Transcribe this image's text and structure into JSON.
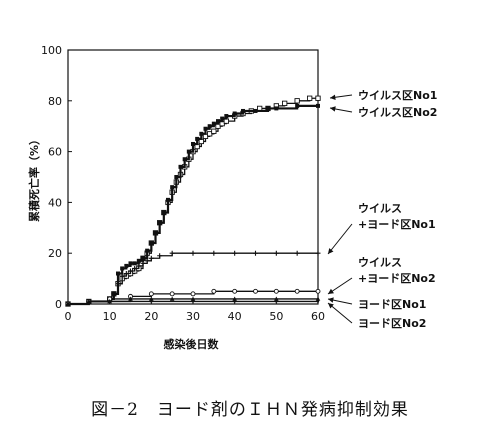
{
  "caption": "図－2　ヨード剤のＩＨＮ発病抑制効果",
  "chart_data": {
    "type": "line",
    "xlabel": "感染後日数",
    "ylabel": "累積死亡率（%）",
    "xlim": [
      0,
      60
    ],
    "ylim": [
      0,
      100
    ],
    "x_ticks": [
      "0",
      "10",
      "20",
      "30",
      "40",
      "50",
      "60"
    ],
    "y_ticks": [
      "0",
      "20",
      "40",
      "60",
      "80",
      "100"
    ],
    "grid": false,
    "legend": "right, labels with arrows",
    "series": [
      {
        "name": "ウイルス区No1",
        "marker": "square",
        "points": [
          [
            0,
            0
          ],
          [
            5,
            1
          ],
          [
            10,
            2
          ],
          [
            11,
            4
          ],
          [
            12,
            8
          ],
          [
            13,
            10
          ],
          [
            14,
            11
          ],
          [
            15,
            12
          ],
          [
            16,
            13
          ],
          [
            17,
            14
          ],
          [
            18,
            18
          ],
          [
            19,
            20
          ],
          [
            20,
            24
          ],
          [
            21,
            28
          ],
          [
            22,
            32
          ],
          [
            23,
            36
          ],
          [
            24,
            40
          ],
          [
            25,
            44
          ],
          [
            26,
            48
          ],
          [
            27,
            51
          ],
          [
            28,
            54
          ],
          [
            29,
            57
          ],
          [
            30,
            60
          ],
          [
            31,
            62
          ],
          [
            32,
            64
          ],
          [
            33,
            66
          ],
          [
            34,
            67
          ],
          [
            35,
            68
          ],
          [
            36,
            70
          ],
          [
            37,
            71
          ],
          [
            38,
            72
          ],
          [
            40,
            74
          ],
          [
            42,
            75
          ],
          [
            44,
            76
          ],
          [
            46,
            77
          ],
          [
            48,
            77
          ],
          [
            50,
            78
          ],
          [
            52,
            79
          ],
          [
            55,
            80
          ],
          [
            58,
            81
          ],
          [
            60,
            81
          ]
        ]
      },
      {
        "name": "ウイルス区No2",
        "marker": "filled-square",
        "points": [
          [
            0,
            0
          ],
          [
            5,
            1
          ],
          [
            10,
            2
          ],
          [
            11,
            4
          ],
          [
            12,
            12
          ],
          [
            13,
            14
          ],
          [
            14,
            15
          ],
          [
            15,
            16
          ],
          [
            16,
            16
          ],
          [
            17,
            17
          ],
          [
            18,
            18
          ],
          [
            19,
            21
          ],
          [
            20,
            24
          ],
          [
            21,
            28
          ],
          [
            22,
            32
          ],
          [
            23,
            36
          ],
          [
            24,
            41
          ],
          [
            25,
            46
          ],
          [
            26,
            50
          ],
          [
            27,
            54
          ],
          [
            28,
            57
          ],
          [
            29,
            60
          ],
          [
            30,
            63
          ],
          [
            31,
            65
          ],
          [
            32,
            67
          ],
          [
            33,
            69
          ],
          [
            34,
            70
          ],
          [
            35,
            71
          ],
          [
            36,
            72
          ],
          [
            37,
            73
          ],
          [
            38,
            74
          ],
          [
            40,
            75
          ],
          [
            42,
            76
          ],
          [
            45,
            76
          ],
          [
            48,
            77
          ],
          [
            50,
            77
          ],
          [
            55,
            78
          ],
          [
            60,
            78
          ]
        ]
      },
      {
        "name": "ウイルス\n+ヨード区No1",
        "marker": "plus",
        "points": [
          [
            0,
            0
          ],
          [
            5,
            1
          ],
          [
            10,
            2
          ],
          [
            11,
            4
          ],
          [
            12,
            8
          ],
          [
            13,
            11
          ],
          [
            14,
            12
          ],
          [
            15,
            13
          ],
          [
            16,
            14
          ],
          [
            17,
            15
          ],
          [
            18,
            16
          ],
          [
            19,
            17
          ],
          [
            20,
            18
          ],
          [
            22,
            19
          ],
          [
            25,
            20
          ],
          [
            30,
            20
          ],
          [
            35,
            20
          ],
          [
            40,
            20
          ],
          [
            45,
            20
          ],
          [
            50,
            20
          ],
          [
            55,
            20
          ],
          [
            60,
            20
          ]
        ]
      },
      {
        "name": "ウイルス\n+ヨード区No2",
        "marker": "circle",
        "points": [
          [
            0,
            0
          ],
          [
            5,
            1
          ],
          [
            10,
            2
          ],
          [
            15,
            3
          ],
          [
            20,
            4
          ],
          [
            25,
            4
          ],
          [
            30,
            4
          ],
          [
            35,
            5
          ],
          [
            40,
            5
          ],
          [
            45,
            5
          ],
          [
            50,
            5
          ],
          [
            55,
            5
          ],
          [
            60,
            5
          ]
        ]
      },
      {
        "name": "ヨード区No1",
        "marker": "triangle",
        "points": [
          [
            0,
            0
          ],
          [
            5,
            1
          ],
          [
            10,
            1
          ],
          [
            15,
            2
          ],
          [
            20,
            2
          ],
          [
            25,
            2
          ],
          [
            30,
            2
          ],
          [
            40,
            2
          ],
          [
            50,
            2
          ],
          [
            60,
            2
          ]
        ]
      },
      {
        "name": "ヨード区No2",
        "marker": "line",
        "points": [
          [
            0,
            0
          ],
          [
            5,
            1
          ],
          [
            10,
            1
          ],
          [
            20,
            1
          ],
          [
            30,
            1
          ],
          [
            40,
            1
          ],
          [
            50,
            1
          ],
          [
            60,
            1
          ]
        ]
      }
    ]
  }
}
